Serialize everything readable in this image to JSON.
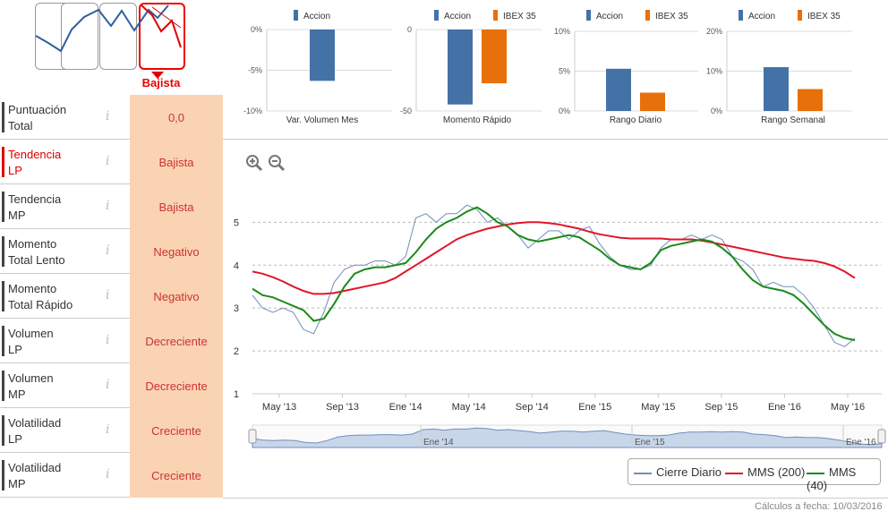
{
  "trend_selector": {
    "active_label": "Bajista"
  },
  "metrics": [
    {
      "name_l1": "Puntuación",
      "name_l2": "Total",
      "value": "0,0",
      "highlight": false
    },
    {
      "name_l1": "Tendencia",
      "name_l2": "LP",
      "value": "Bajista",
      "highlight": true
    },
    {
      "name_l1": "Tendencia",
      "name_l2": "MP",
      "value": "Bajista",
      "highlight": false
    },
    {
      "name_l1": "Momento",
      "name_l2": "Total Lento",
      "value": "Negativo",
      "highlight": false
    },
    {
      "name_l1": "Momento",
      "name_l2": "Total Rápido",
      "value": "Negativo",
      "highlight": false
    },
    {
      "name_l1": "Volumen",
      "name_l2": "LP",
      "value": "Decreciente",
      "highlight": false
    },
    {
      "name_l1": "Volumen",
      "name_l2": "MP",
      "value": "Decreciente",
      "highlight": false
    },
    {
      "name_l1": "Volatilidad",
      "name_l2": "LP",
      "value": "Creciente",
      "highlight": false
    },
    {
      "name_l1": "Volatilidad",
      "name_l2": "MP",
      "value": "Creciente",
      "highlight": false
    }
  ],
  "info_glyph": "i",
  "colors": {
    "accion": "#4472a6",
    "ibex": "#e8700a",
    "daily": "#6f8fb8",
    "mms200": "#e0162b",
    "mms40": "#1a8a1a",
    "red": "#dd0000"
  },
  "chart_data": [
    {
      "type": "bar",
      "title": "Var. Volumen Mes",
      "series": [
        {
          "name": "Accion",
          "values": [
            -6.3
          ]
        }
      ],
      "yticks": [
        "0%",
        "-5%",
        "-10%"
      ],
      "ylim": [
        -10,
        0
      ]
    },
    {
      "type": "bar",
      "title": "Momento Rápido",
      "series": [
        {
          "name": "Accion",
          "values": [
            -46
          ]
        },
        {
          "name": "IBEX 35",
          "values": [
            -33
          ]
        }
      ],
      "yticks": [
        "0",
        "-50"
      ],
      "ylim": [
        -50,
        0
      ]
    },
    {
      "type": "bar",
      "title": "Rango Diario",
      "series": [
        {
          "name": "Accion",
          "values": [
            5.3
          ]
        },
        {
          "name": "IBEX 35",
          "values": [
            2.3
          ]
        }
      ],
      "yticks": [
        "10%",
        "5%",
        "0%"
      ],
      "ylim": [
        0,
        10
      ]
    },
    {
      "type": "bar",
      "title": "Rango Semanal",
      "series": [
        {
          "name": "Accion",
          "values": [
            11
          ]
        },
        {
          "name": "IBEX 35",
          "values": [
            5.5
          ]
        }
      ],
      "yticks": [
        "20%",
        "10%",
        "0%"
      ],
      "ylim": [
        0,
        20
      ]
    },
    {
      "type": "line",
      "title": "",
      "xlabels": [
        "May '13",
        "Sep '13",
        "Ene '14",
        "May '14",
        "Sep '14",
        "Ene '15",
        "May '15",
        "Sep '15",
        "Ene '16",
        "May '16"
      ],
      "navigator_labels": [
        "Ene '14",
        "Ene '15",
        "Ene '16"
      ],
      "yticks": [
        1,
        2,
        3,
        4,
        5
      ],
      "ylim": [
        1,
        5.8
      ],
      "grid": true,
      "legend": "bottom-right",
      "series": [
        {
          "name": "Cierre Diario",
          "values": [
            3.3,
            3.0,
            2.9,
            3.0,
            2.9,
            2.5,
            2.4,
            2.9,
            3.6,
            3.9,
            4.0,
            4.0,
            4.1,
            4.1,
            4.0,
            4.2,
            5.1,
            5.2,
            5.0,
            5.2,
            5.2,
            5.4,
            5.3,
            5.0,
            5.1,
            4.9,
            4.7,
            4.4,
            4.6,
            4.8,
            4.8,
            4.6,
            4.8,
            4.9,
            4.5,
            4.2,
            4.0,
            3.9,
            3.9,
            4.0,
            4.4,
            4.6,
            4.6,
            4.7,
            4.6,
            4.7,
            4.6,
            4.2,
            4.1,
            3.9,
            3.5,
            3.6,
            3.5,
            3.5,
            3.3,
            3.0,
            2.6,
            2.2,
            2.1,
            2.3
          ]
        },
        {
          "name": "MMS (200)",
          "values": [
            3.85,
            3.8,
            3.72,
            3.62,
            3.5,
            3.4,
            3.33,
            3.33,
            3.35,
            3.4,
            3.45,
            3.5,
            3.55,
            3.6,
            3.7,
            3.85,
            4.0,
            4.15,
            4.3,
            4.45,
            4.6,
            4.7,
            4.78,
            4.85,
            4.9,
            4.95,
            4.98,
            5.0,
            5.0,
            4.98,
            4.95,
            4.9,
            4.85,
            4.78,
            4.72,
            4.68,
            4.64,
            4.62,
            4.62,
            4.62,
            4.62,
            4.6,
            4.6,
            4.6,
            4.57,
            4.53,
            4.48,
            4.43,
            4.38,
            4.33,
            4.28,
            4.23,
            4.18,
            4.15,
            4.12,
            4.1,
            4.05,
            3.97,
            3.85,
            3.7
          ]
        },
        {
          "name": "MMS (40)",
          "values": [
            3.45,
            3.3,
            3.25,
            3.15,
            3.05,
            2.95,
            2.7,
            2.75,
            3.1,
            3.5,
            3.8,
            3.9,
            3.95,
            3.95,
            4.0,
            4.05,
            4.3,
            4.6,
            4.85,
            5.0,
            5.1,
            5.25,
            5.35,
            5.2,
            5.0,
            4.9,
            4.7,
            4.6,
            4.55,
            4.6,
            4.65,
            4.7,
            4.65,
            4.5,
            4.35,
            4.15,
            4.0,
            3.95,
            3.9,
            4.05,
            4.35,
            4.45,
            4.5,
            4.55,
            4.6,
            4.55,
            4.4,
            4.2,
            3.9,
            3.65,
            3.5,
            3.45,
            3.4,
            3.3,
            3.1,
            2.85,
            2.6,
            2.4,
            2.3,
            2.25
          ]
        }
      ]
    }
  ],
  "zoom": {
    "in": "+",
    "out": "−"
  },
  "footer": "Cálculos a fecha: 10/03/2016"
}
